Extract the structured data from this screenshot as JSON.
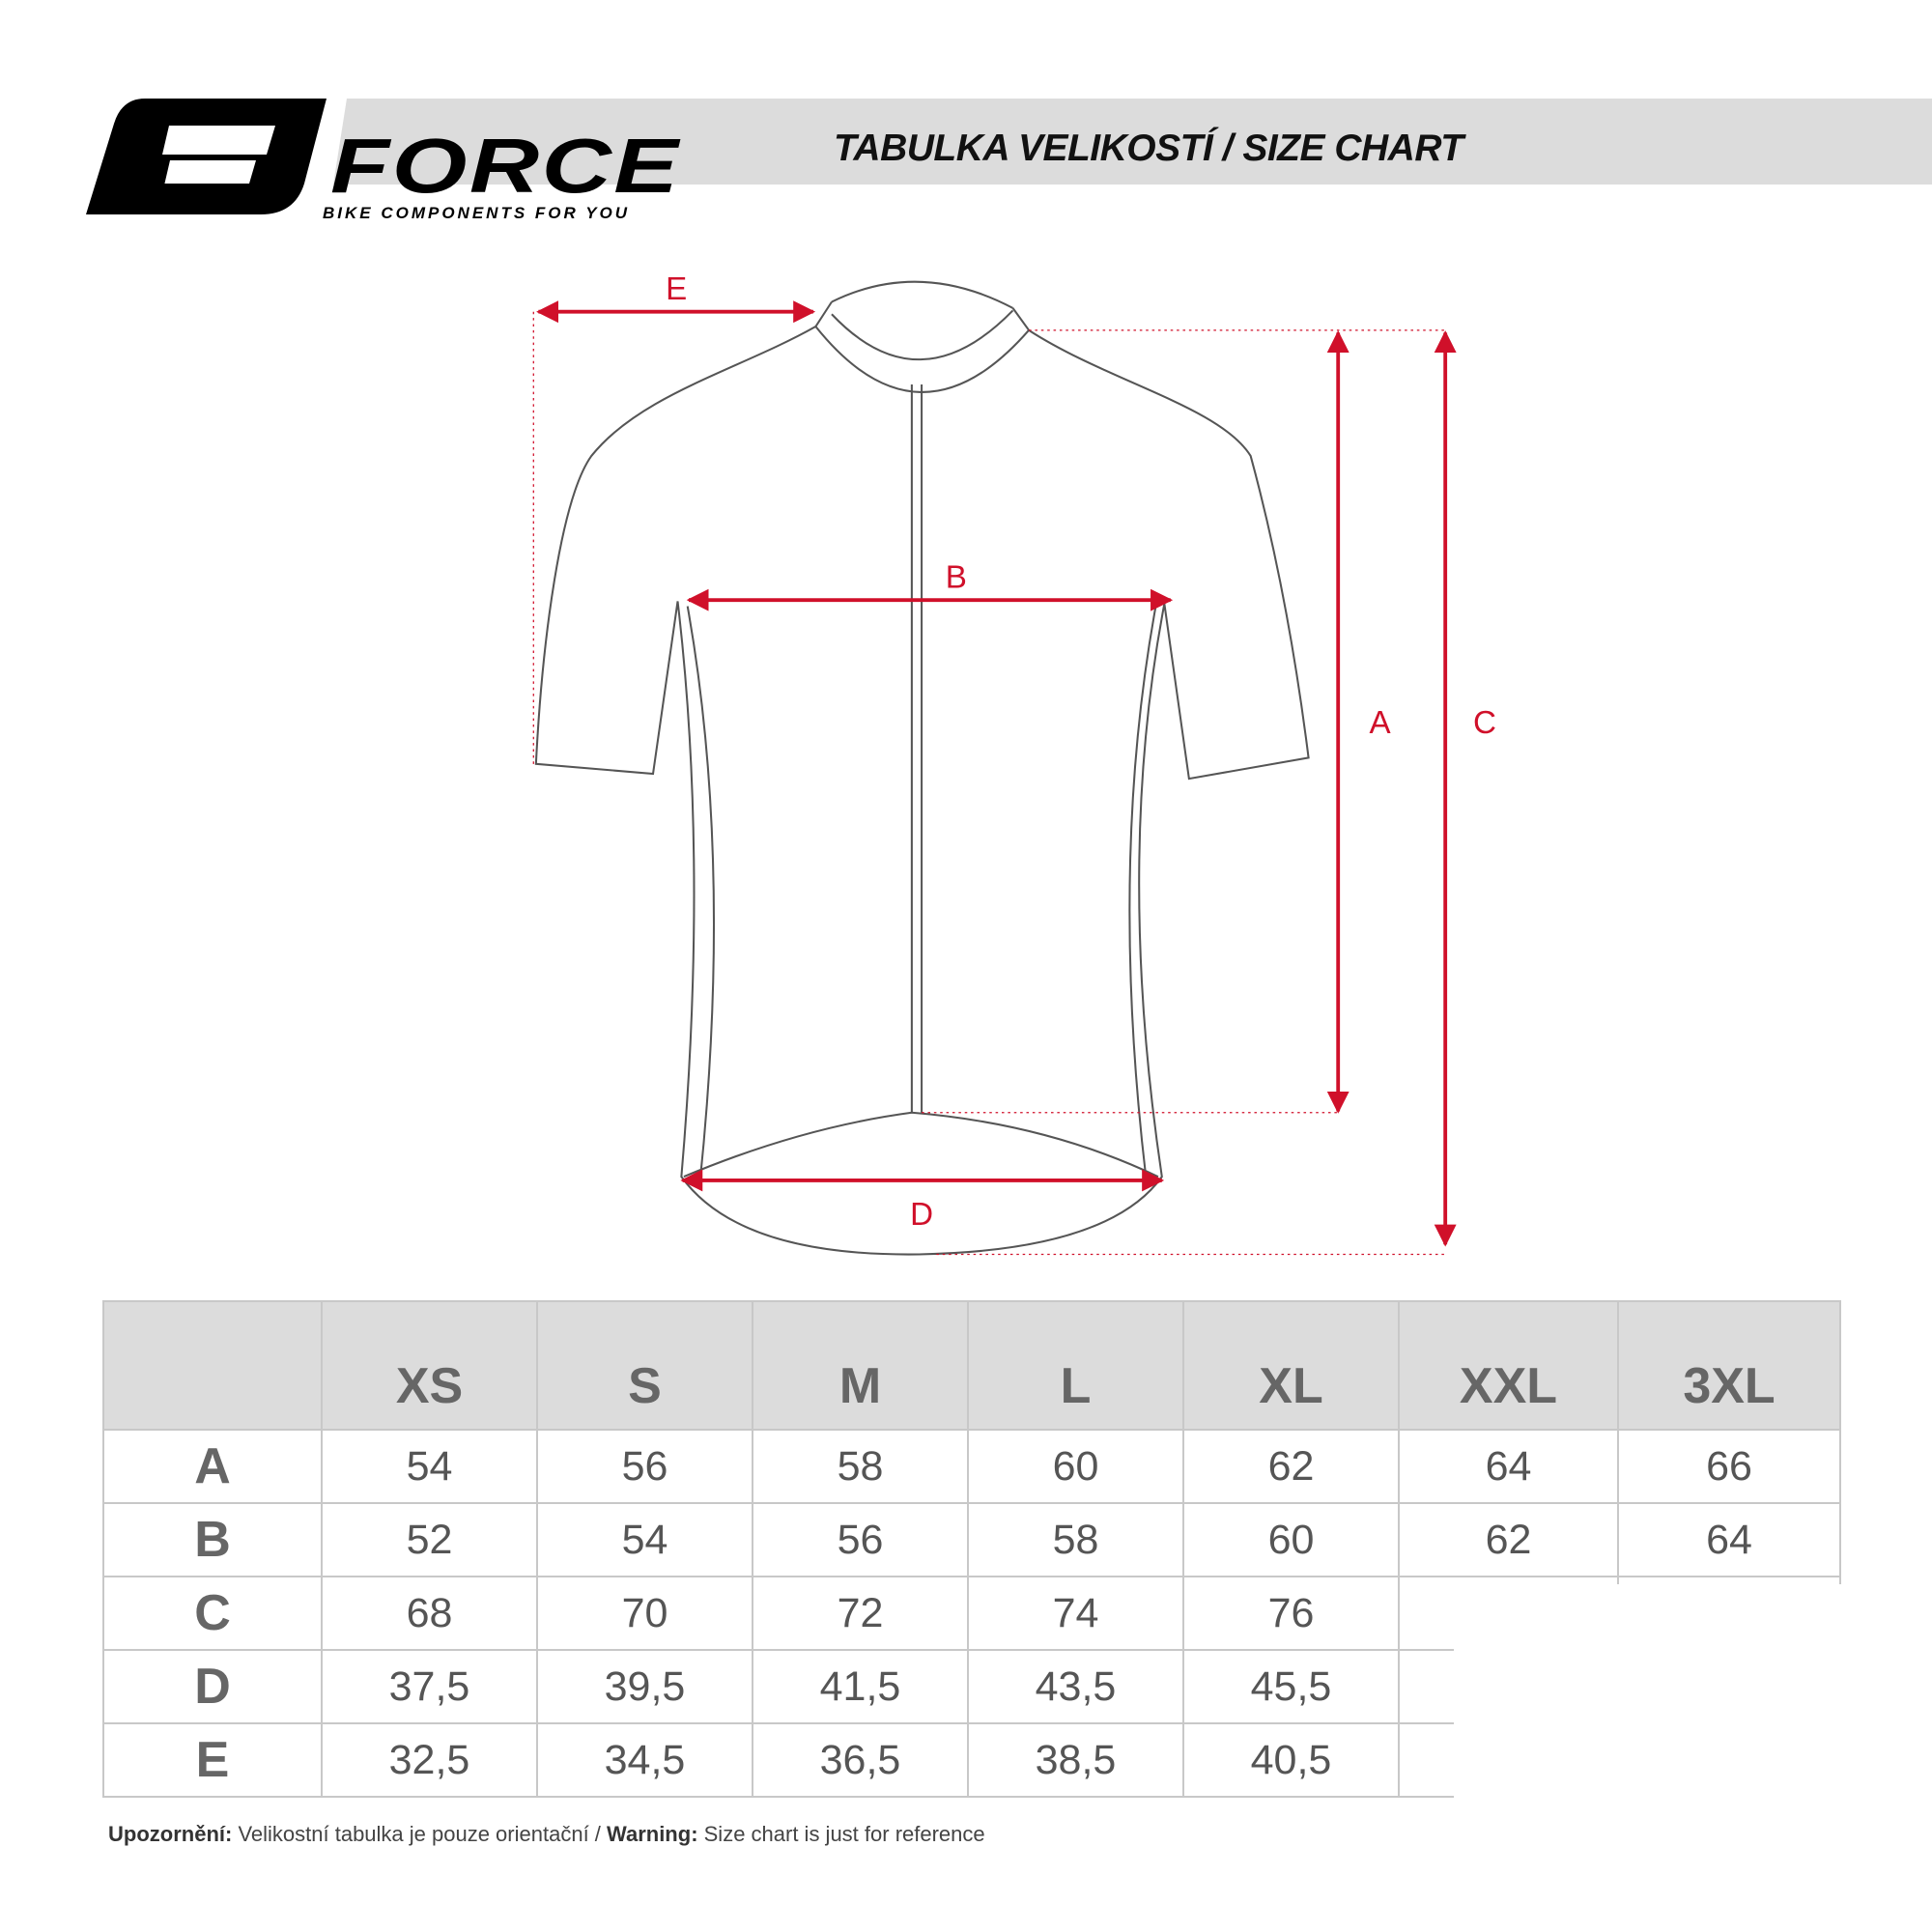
{
  "header": {
    "brand": "FORCE",
    "tagline": "BIKE COMPONENTS FOR YOU",
    "title": "TABULKA VELIKOSTÍ / SIZE CHART"
  },
  "diagram": {
    "labels": {
      "A": "A",
      "B": "B",
      "C": "C",
      "D": "D",
      "E": "E"
    },
    "accent_color": "#d0102a",
    "outline_color": "#555555"
  },
  "table": {
    "columns": [
      "",
      "XS",
      "S",
      "M",
      "L",
      "XL",
      "XXL",
      "3XL"
    ],
    "rows": [
      {
        "label": "A",
        "values": [
          "54",
          "56",
          "58",
          "60",
          "62",
          "64",
          "66"
        ]
      },
      {
        "label": "B",
        "values": [
          "52",
          "54",
          "56",
          "58",
          "60",
          "62",
          "64"
        ]
      },
      {
        "label": "C",
        "values": [
          "68",
          "70",
          "72",
          "74",
          "76",
          "",
          ""
        ]
      },
      {
        "label": "D",
        "values": [
          "37,5",
          "39,5",
          "41,5",
          "43,5",
          "45,5",
          "",
          ""
        ]
      },
      {
        "label": "E",
        "values": [
          "32,5",
          "34,5",
          "36,5",
          "38,5",
          "40,5",
          "",
          ""
        ]
      }
    ]
  },
  "footer": {
    "warning_cz_label": "Upozornění:",
    "warning_cz_text": " Velikostní tabulka je pouze orientační / ",
    "warning_en_label": "Warning:",
    "warning_en_text": " Size chart is just for reference"
  }
}
